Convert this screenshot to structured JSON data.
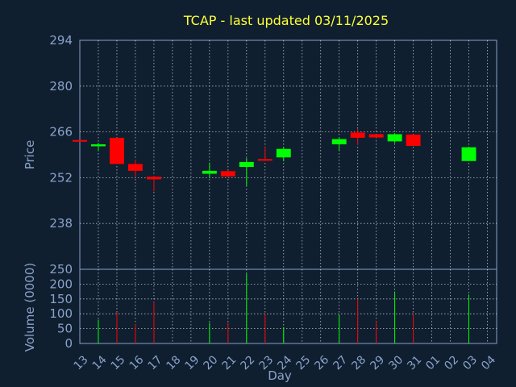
{
  "colors": {
    "background": "#0f1f30",
    "plot_background": "#0f1f30",
    "title": "#ffff33",
    "axis_text": "#8aa2c8",
    "up": "#00ff00",
    "down": "#ff0000",
    "grid": "#ffffff"
  },
  "chart_data": {
    "type": "candlestick",
    "title": "TCAP - last updated 03/11/2025",
    "xlabel": "Day",
    "price_panel": {
      "ylabel": "Price",
      "ylim": [
        224,
        294
      ],
      "yticks": [
        294,
        280,
        266,
        252,
        238
      ]
    },
    "volume_panel": {
      "ylabel": "Volume (0000)",
      "ylim": [
        0,
        250
      ],
      "yticks": [
        250,
        200,
        150,
        100,
        50,
        0
      ]
    },
    "x_ticks": [
      "13",
      "14",
      "15",
      "16",
      "17",
      "18",
      "19",
      "20",
      "21",
      "22",
      "23",
      "24",
      "25",
      "26",
      "27",
      "28",
      "29",
      "30",
      "31",
      "01",
      "02",
      "03",
      "04"
    ],
    "candles": [
      {
        "day": "13",
        "open": 263.5,
        "close": 263.1,
        "high": 263.5,
        "low": 263.1,
        "volume": 0
      },
      {
        "day": "14",
        "open": 261.6,
        "close": 262.2,
        "high": 262.7,
        "low": 260.2,
        "volume": 80
      },
      {
        "day": "15",
        "open": 264.2,
        "close": 256.2,
        "high": 264.2,
        "low": 256.2,
        "volume": 105
      },
      {
        "day": "16",
        "open": 256.2,
        "close": 254.1,
        "high": 257.5,
        "low": 252.3,
        "volume": 65
      },
      {
        "day": "17",
        "open": 252.3,
        "close": 251.5,
        "high": 252.6,
        "low": 247.8,
        "volume": 140
      },
      {
        "day": "20",
        "open": 253.2,
        "close": 254.1,
        "high": 256.6,
        "low": 252.0,
        "volume": 70
      },
      {
        "day": "21",
        "open": 254.0,
        "close": 252.4,
        "high": 254.2,
        "low": 252.2,
        "volume": 70
      },
      {
        "day": "22",
        "open": 255.3,
        "close": 256.8,
        "high": 258.0,
        "low": 249.4,
        "volume": 235
      },
      {
        "day": "23",
        "open": 257.7,
        "close": 257.2,
        "high": 261.6,
        "low": 257.1,
        "volume": 100
      },
      {
        "day": "24",
        "open": 258.2,
        "close": 260.8,
        "high": 261.4,
        "low": 257.0,
        "volume": 55
      },
      {
        "day": "27",
        "open": 262.2,
        "close": 263.8,
        "high": 264.3,
        "low": 260.2,
        "volume": 95
      },
      {
        "day": "28",
        "open": 265.8,
        "close": 264.2,
        "high": 266.9,
        "low": 262.1,
        "volume": 150
      },
      {
        "day": "29",
        "open": 265.3,
        "close": 264.3,
        "high": 265.3,
        "low": 264.2,
        "volume": 75
      },
      {
        "day": "30",
        "open": 263.1,
        "close": 265.3,
        "high": 265.6,
        "low": 262.6,
        "volume": 175
      },
      {
        "day": "31",
        "open": 265.2,
        "close": 261.7,
        "high": 265.3,
        "low": 261.7,
        "volume": 100
      },
      {
        "day": "03",
        "open": 257.1,
        "close": 261.3,
        "high": 261.5,
        "low": 257.1,
        "volume": 165
      }
    ]
  }
}
